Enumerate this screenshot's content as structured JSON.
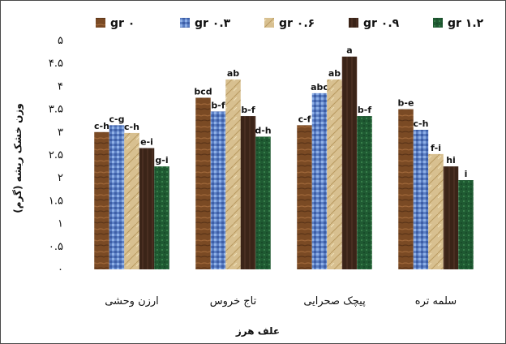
{
  "chart_data": {
    "type": "bar",
    "xlabel": "علف هرز",
    "ylabel": "وزن خشک ریشه (گرم)",
    "ylim": [
      0,
      5
    ],
    "yticks": [
      "۰",
      "۰.۵",
      "۱",
      "۱.۵",
      "۲",
      "۲.۵",
      "۳",
      "۳.۵",
      "۴",
      "۴.۵",
      "۵"
    ],
    "grid": false,
    "legend_position": "top",
    "categories": [
      "ارزن وحشی",
      "تاج خروس",
      "پیچک صحرایی",
      "سلمه تره"
    ],
    "series": [
      {
        "name": "gr ۰",
        "color": "#7a4a24",
        "pattern": "wood",
        "values": [
          3.0,
          3.75,
          3.15,
          3.5
        ],
        "labels": [
          "c-h",
          "bcd",
          "c-f",
          "b-e"
        ]
      },
      {
        "name": "gr ۰.۳",
        "color": "#5b7fc4",
        "pattern": "blue",
        "values": [
          3.15,
          3.45,
          3.85,
          3.05
        ],
        "labels": [
          "c-g",
          "b-f",
          "abc",
          "c-h"
        ]
      },
      {
        "name": "gr ۰.۶",
        "color": "#d8c090",
        "pattern": "paper",
        "values": [
          2.98,
          4.15,
          4.15,
          2.52
        ],
        "labels": [
          "c-h",
          "ab",
          "ab",
          "f-i"
        ]
      },
      {
        "name": "gr ۰.۹",
        "color": "#3b2418",
        "pattern": "dark",
        "values": [
          2.65,
          3.35,
          4.65,
          2.25
        ],
        "labels": [
          "e-i",
          "b-f",
          "a",
          "hi"
        ]
      },
      {
        "name": "gr ۱.۲",
        "color": "#1f5a32",
        "pattern": "green",
        "values": [
          2.25,
          2.9,
          3.35,
          1.95
        ],
        "labels": [
          "g-i",
          "d-h",
          "b-f",
          "i"
        ]
      }
    ]
  }
}
